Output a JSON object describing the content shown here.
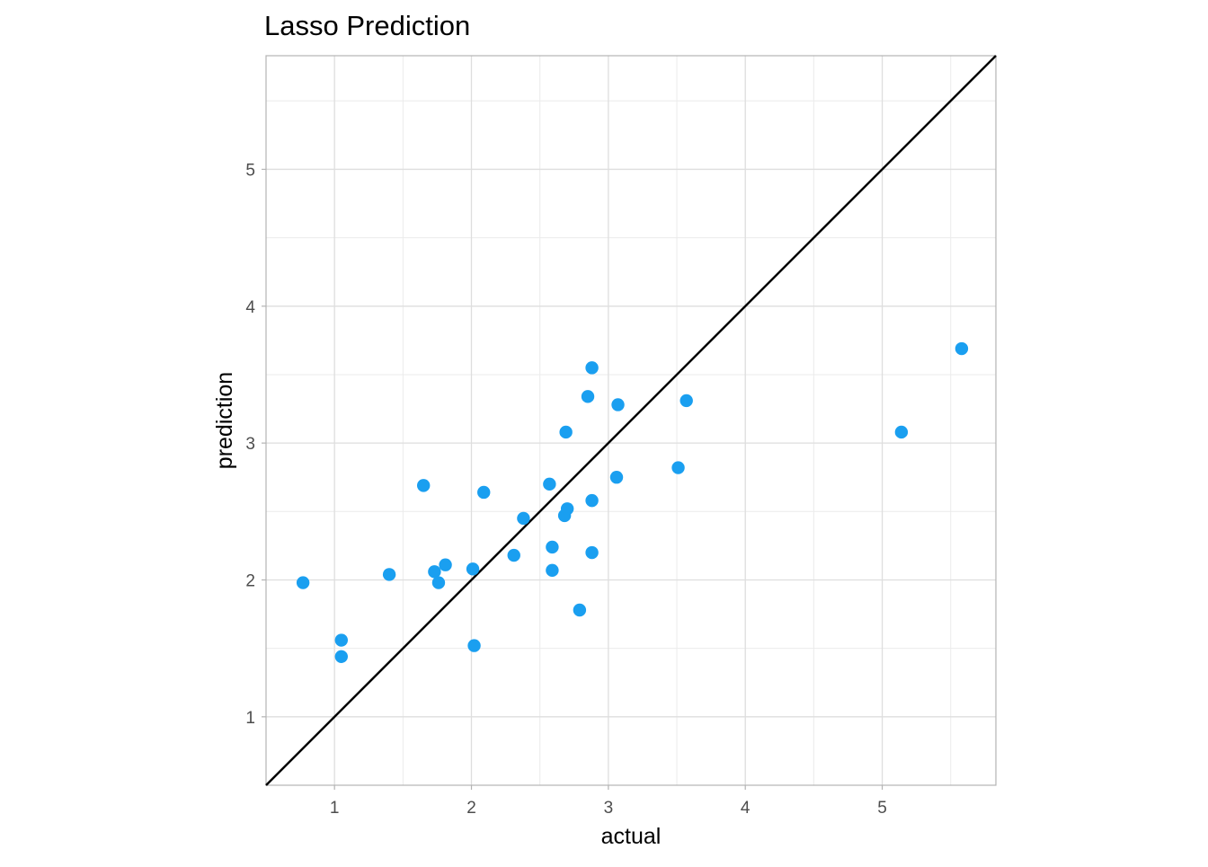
{
  "chart_data": {
    "type": "scatter",
    "title": "Lasso Prediction",
    "xlabel": "actual",
    "ylabel": "prediction",
    "xlim": [
      0.5,
      5.83
    ],
    "ylim": [
      0.5,
      5.83
    ],
    "x_ticks": [
      1,
      2,
      3,
      4,
      5
    ],
    "y_ticks": [
      1,
      2,
      3,
      4,
      5
    ],
    "x_tick_labels": [
      "1",
      "2",
      "3",
      "4",
      "5"
    ],
    "y_tick_labels": [
      "1",
      "2",
      "3",
      "4",
      "5"
    ],
    "grid": true,
    "reference_line": {
      "type": "identity",
      "slope": 1,
      "intercept": 0,
      "color": "#000000"
    },
    "point_color": "#1a9ff0",
    "points": [
      {
        "x": 0.77,
        "y": 1.98
      },
      {
        "x": 1.05,
        "y": 1.56
      },
      {
        "x": 1.05,
        "y": 1.44
      },
      {
        "x": 1.4,
        "y": 2.04
      },
      {
        "x": 1.65,
        "y": 2.69
      },
      {
        "x": 1.73,
        "y": 2.06
      },
      {
        "x": 1.76,
        "y": 1.98
      },
      {
        "x": 1.81,
        "y": 2.11
      },
      {
        "x": 2.01,
        "y": 2.08
      },
      {
        "x": 2.02,
        "y": 1.52
      },
      {
        "x": 2.09,
        "y": 2.64
      },
      {
        "x": 2.31,
        "y": 2.18
      },
      {
        "x": 2.38,
        "y": 2.45
      },
      {
        "x": 2.57,
        "y": 2.7
      },
      {
        "x": 2.59,
        "y": 2.24
      },
      {
        "x": 2.59,
        "y": 2.07
      },
      {
        "x": 2.68,
        "y": 2.47
      },
      {
        "x": 2.69,
        "y": 3.08
      },
      {
        "x": 2.7,
        "y": 2.52
      },
      {
        "x": 2.79,
        "y": 1.78
      },
      {
        "x": 2.85,
        "y": 3.34
      },
      {
        "x": 2.88,
        "y": 3.55
      },
      {
        "x": 2.88,
        "y": 2.58
      },
      {
        "x": 2.88,
        "y": 2.2
      },
      {
        "x": 3.06,
        "y": 2.75
      },
      {
        "x": 3.07,
        "y": 3.28
      },
      {
        "x": 3.51,
        "y": 2.82
      },
      {
        "x": 3.57,
        "y": 3.31
      },
      {
        "x": 5.14,
        "y": 3.08
      },
      {
        "x": 5.58,
        "y": 3.69
      }
    ]
  }
}
